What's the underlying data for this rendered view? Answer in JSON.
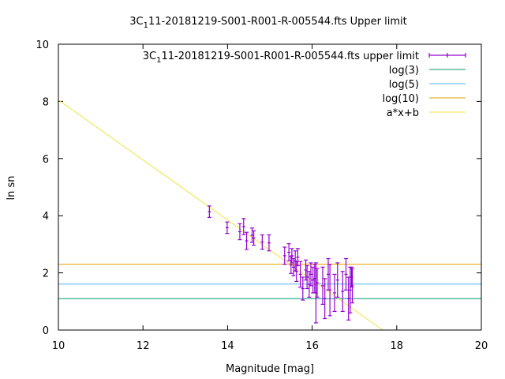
{
  "chart_data": {
    "type": "scatter",
    "title_prefix": "3C",
    "title_sub": "1",
    "title_suffix": "11-20181219-S001-R001-R-005544.fts Upper limit",
    "xlabel": "Magnitude [mag]",
    "ylabel": "ln sn",
    "xlim": [
      10,
      20
    ],
    "ylim": [
      0,
      10
    ],
    "x_ticks": [
      "10",
      "12",
      "14",
      "16",
      "18",
      "20"
    ],
    "y_ticks": [
      "0",
      "2",
      "4",
      "6",
      "8",
      "10"
    ],
    "grid": false,
    "legend_position": "top-right",
    "series": [
      {
        "name_prefix": "3C",
        "name_sub": "1",
        "name_suffix": "11-20181219-S001-R001-R-005544.fts upper limit",
        "kind": "errorbar",
        "color": "#9400d3",
        "points": [
          {
            "x": 13.57,
            "y": 4.14,
            "err": 0.2
          },
          {
            "x": 13.99,
            "y": 3.58,
            "err": 0.2
          },
          {
            "x": 14.29,
            "y": 3.44,
            "err": 0.28
          },
          {
            "x": 14.38,
            "y": 3.62,
            "err": 0.28
          },
          {
            "x": 14.45,
            "y": 3.12,
            "err": 0.3
          },
          {
            "x": 14.58,
            "y": 3.32,
            "err": 0.25
          },
          {
            "x": 14.62,
            "y": 3.22,
            "err": 0.25
          },
          {
            "x": 14.82,
            "y": 3.08,
            "err": 0.25
          },
          {
            "x": 14.98,
            "y": 3.05,
            "err": 0.28
          },
          {
            "x": 15.35,
            "y": 2.6,
            "err": 0.3
          },
          {
            "x": 15.45,
            "y": 2.72,
            "err": 0.3
          },
          {
            "x": 15.5,
            "y": 2.28,
            "err": 0.3
          },
          {
            "x": 15.52,
            "y": 2.6,
            "err": 0.25
          },
          {
            "x": 15.56,
            "y": 2.2,
            "err": 0.3
          },
          {
            "x": 15.6,
            "y": 2.42,
            "err": 0.35
          },
          {
            "x": 15.63,
            "y": 2.05,
            "err": 0.35
          },
          {
            "x": 15.66,
            "y": 2.55,
            "err": 0.3
          },
          {
            "x": 15.72,
            "y": 1.95,
            "err": 0.45
          },
          {
            "x": 15.78,
            "y": 1.45,
            "err": 0.4
          },
          {
            "x": 15.85,
            "y": 2.1,
            "err": 0.35
          },
          {
            "x": 15.88,
            "y": 1.85,
            "err": 0.4
          },
          {
            "x": 15.93,
            "y": 1.6,
            "err": 0.45
          },
          {
            "x": 15.97,
            "y": 1.95,
            "err": 0.4
          },
          {
            "x": 16.02,
            "y": 1.75,
            "err": 0.45
          },
          {
            "x": 16.06,
            "y": 1.8,
            "err": 0.5
          },
          {
            "x": 16.09,
            "y": 1.3,
            "err": 1.05
          },
          {
            "x": 16.12,
            "y": 1.65,
            "err": 0.5
          },
          {
            "x": 16.25,
            "y": 1.55,
            "err": 0.65
          },
          {
            "x": 16.3,
            "y": 1.1,
            "err": 0.7
          },
          {
            "x": 16.38,
            "y": 1.95,
            "err": 0.55
          },
          {
            "x": 16.42,
            "y": 1.4,
            "err": 0.9
          },
          {
            "x": 16.53,
            "y": 1.3,
            "err": 0.65
          },
          {
            "x": 16.6,
            "y": 1.75,
            "err": 0.6
          },
          {
            "x": 16.72,
            "y": 1.35,
            "err": 0.7
          },
          {
            "x": 16.8,
            "y": 1.95,
            "err": 0.55
          },
          {
            "x": 16.86,
            "y": 1.1,
            "err": 0.75
          },
          {
            "x": 16.9,
            "y": 1.4,
            "err": 0.8
          },
          {
            "x": 16.93,
            "y": 1.85,
            "err": 0.35
          },
          {
            "x": 16.95,
            "y": 1.55,
            "err": 0.6
          }
        ]
      },
      {
        "name": "log(3)",
        "kind": "hline",
        "color": "#009e73",
        "y": 1.0986
      },
      {
        "name": "log(5)",
        "kind": "hline",
        "color": "#56b4e9",
        "y": 1.6094
      },
      {
        "name": "log(10)",
        "kind": "hline",
        "color": "#e69f00",
        "y": 2.3026
      },
      {
        "name": "a*x+b",
        "kind": "fit",
        "color": "#f0e442",
        "slope": -1.0498,
        "intercept": 18.548
      }
    ]
  }
}
